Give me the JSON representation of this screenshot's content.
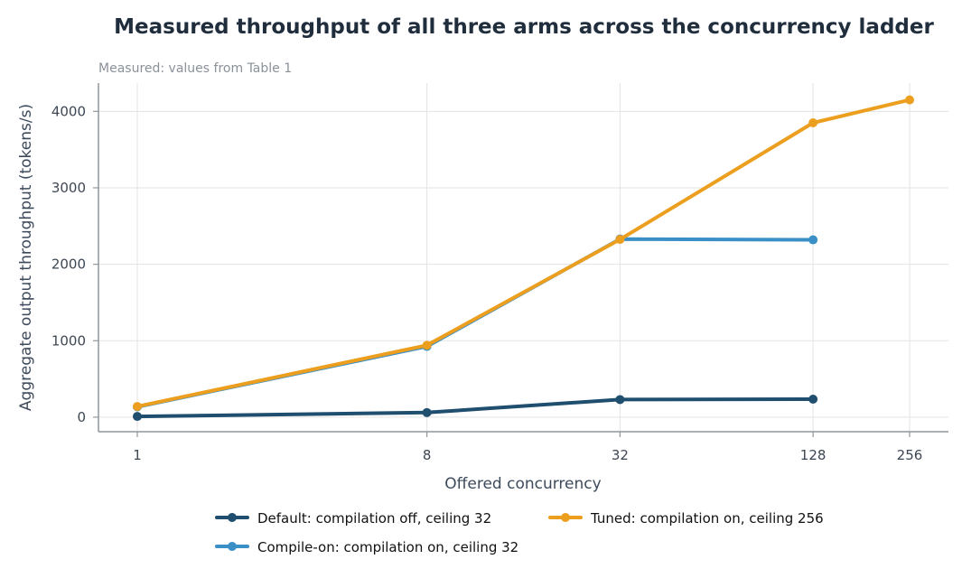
{
  "chart_data": {
    "type": "line",
    "title": "Measured throughput of all three arms across the concurrency ladder",
    "subtitle": "Measured: values from Table 1",
    "xlabel": "Offered concurrency",
    "ylabel": "Aggregate output throughput (tokens/s)",
    "x": [
      1,
      8,
      32,
      128,
      256
    ],
    "x_scale": "log2",
    "ylim": [
      -190,
      4370
    ],
    "yticks": [
      0,
      1000,
      2000,
      3000,
      4000
    ],
    "grid": true,
    "legend_position": "bottom",
    "series": [
      {
        "name": "Default: compilation off, ceiling 32",
        "color": "#1f4e6e",
        "x": [
          1,
          8,
          32,
          128
        ],
        "values": [
          10,
          60,
          230,
          235
        ]
      },
      {
        "name": "Compile-on: compilation on, ceiling 32",
        "color": "#3a8fc7",
        "x": [
          1,
          8,
          32,
          128
        ],
        "values": [
          135,
          925,
          2330,
          2320
        ]
      },
      {
        "name": "Tuned: compilation on, ceiling 256",
        "color": "#ec9f1f",
        "x": [
          1,
          8,
          32,
          128,
          256
        ],
        "values": [
          140,
          940,
          2325,
          3850,
          4150
        ]
      }
    ]
  }
}
